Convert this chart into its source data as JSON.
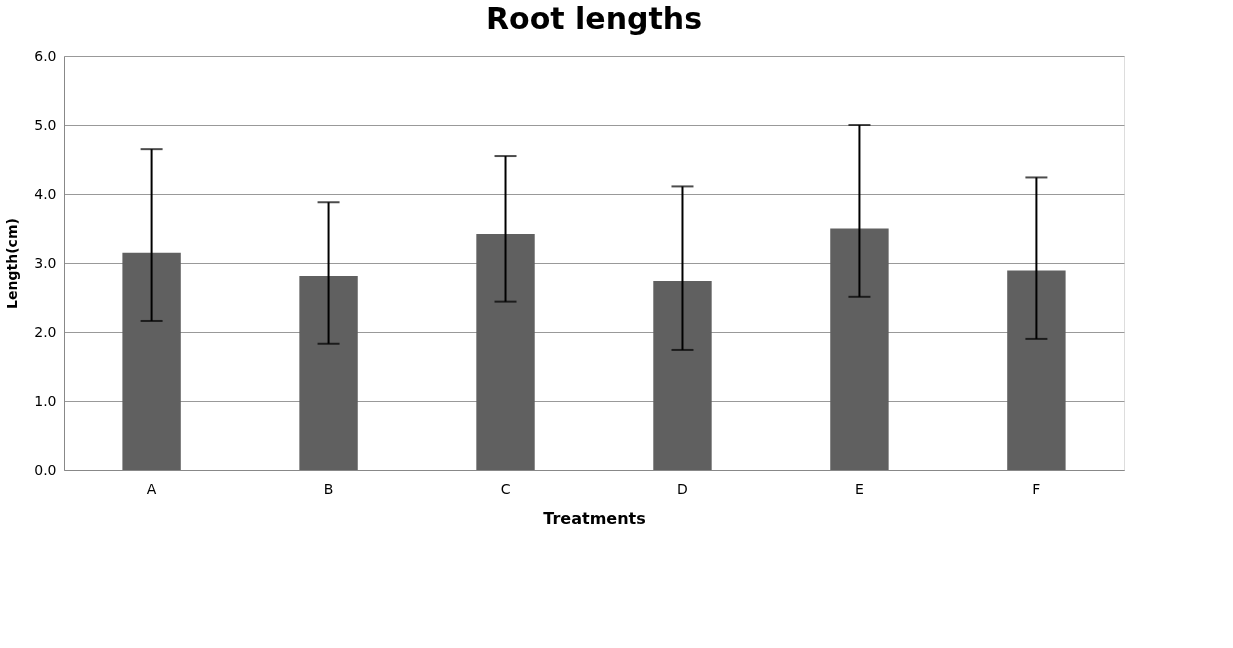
{
  "chart_data": {
    "type": "bar",
    "title": "Root lengths",
    "xlabel": "Treatments",
    "ylabel": "Length(cm)",
    "categories": [
      "A",
      "B",
      "C",
      "D",
      "E",
      "F"
    ],
    "values": [
      3.15,
      2.81,
      3.42,
      2.74,
      3.5,
      2.89
    ],
    "errors": [
      [
        2.16,
        4.65
      ],
      [
        1.83,
        3.88
      ],
      [
        2.44,
        4.55
      ],
      [
        1.74,
        4.11
      ],
      [
        2.51,
        5.0
      ],
      [
        1.9,
        4.24
      ]
    ],
    "color": "#606060",
    "ylim": [
      0,
      6
    ],
    "yticks": [
      {
        "value": 0,
        "label": "0.0"
      },
      {
        "value": 1,
        "label": "1.0"
      },
      {
        "value": 2,
        "label": "2.0"
      },
      {
        "value": 3,
        "label": "3.0"
      },
      {
        "value": 4,
        "label": "4.0"
      },
      {
        "value": 5,
        "label": "5.0"
      },
      {
        "value": 6,
        "label": "6.0"
      }
    ],
    "grid": "y"
  }
}
